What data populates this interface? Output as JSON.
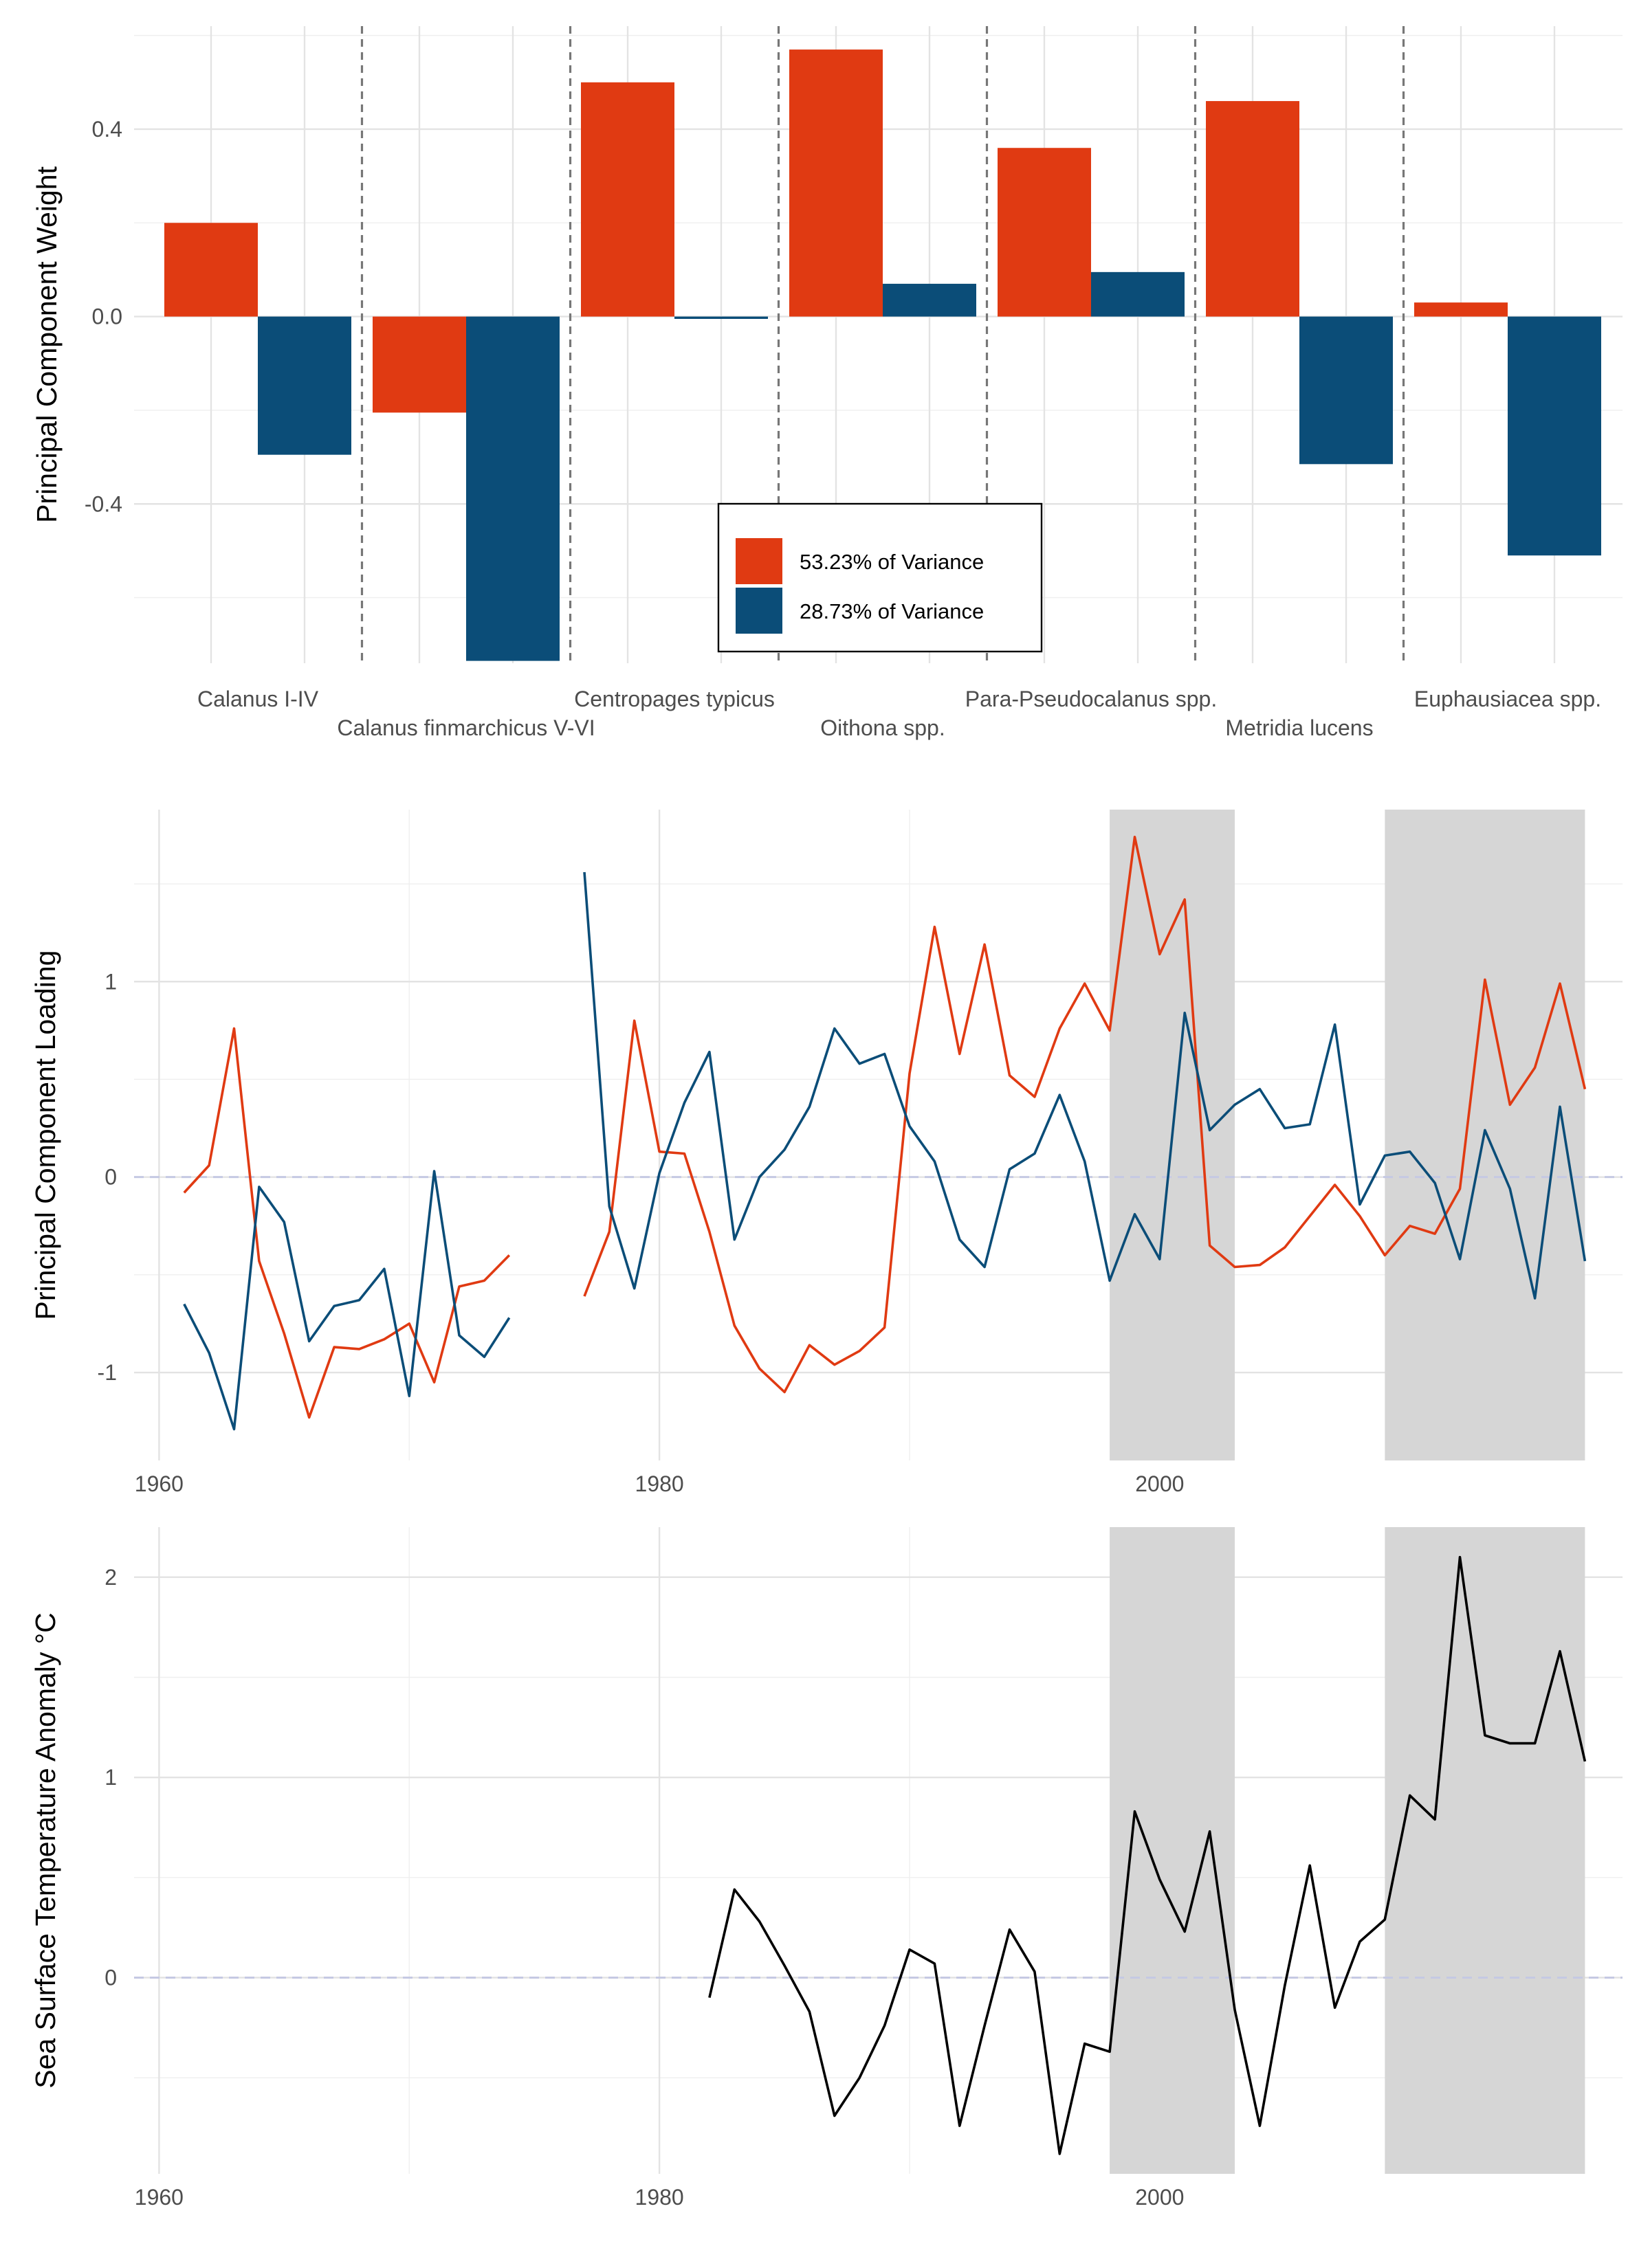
{
  "chart_data": [
    {
      "type": "bar",
      "ylabel": "Principal Component Weight",
      "ylim": [
        -0.74,
        0.62
      ],
      "yticks": [
        0.4,
        0.0,
        -0.4
      ],
      "ytick_labels": [
        "0.4",
        "0.0",
        "-0.4"
      ],
      "categories": [
        "Calanus I-IV",
        "Calanus finmarchicus V-VI",
        "Centropages typicus",
        "Oithona spp.",
        "Para-Pseudocalanus spp.",
        "Metridia lucens",
        "Euphausiacea spp."
      ],
      "series": [
        {
          "name": "53.23% of Variance",
          "color": "#E03A12",
          "values": [
            0.2,
            -0.205,
            0.5,
            0.57,
            0.36,
            0.46,
            0.03
          ]
        },
        {
          "name": "28.73% of Variance",
          "color": "#0B4D78",
          "values": [
            -0.295,
            -0.735,
            -0.005,
            0.07,
            0.095,
            -0.315,
            -0.51
          ]
        }
      ],
      "legend_position": "bottom-center",
      "category_separators": "dashed",
      "grid": true
    },
    {
      "type": "line",
      "ylabel": "Principal Component Loading",
      "xlim": [
        1959,
        2018.5
      ],
      "ylim": [
        -1.45,
        1.88
      ],
      "xticks": [
        1960,
        1980,
        2000
      ],
      "xtick_labels": [
        "1960",
        "1980",
        "2000"
      ],
      "yticks": [
        1,
        0,
        -1
      ],
      "ytick_labels": [
        "1",
        "0",
        "-1"
      ],
      "shaded_periods": [
        [
          1998,
          2003
        ],
        [
          2009,
          2017
        ]
      ],
      "zero_line": "dashed",
      "series": [
        {
          "color": "#E03A12",
          "segments": [
            {
              "x": [
                1961,
                1962,
                1963,
                1964,
                1965,
                1966,
                1967,
                1968,
                1969,
                1970,
                1971,
                1972,
                1973,
                1974
              ],
              "y": [
                -0.08,
                0.06,
                0.76,
                -0.43,
                -0.8,
                -1.23,
                -0.87,
                -0.88,
                -0.83,
                -0.75,
                -1.05,
                -0.56,
                -0.53,
                -0.4
              ]
            },
            {
              "x": [
                1977,
                1978,
                1979,
                1980,
                1981,
                1982,
                1983,
                1984,
                1985,
                1986,
                1987,
                1988,
                1989,
                1990,
                1991,
                1992,
                1993,
                1994,
                1995,
                1996,
                1997,
                1998,
                1999,
                2000,
                2001,
                2002,
                2003,
                2004,
                2005,
                2006,
                2007,
                2008,
                2009,
                2010,
                2011,
                2012,
                2013,
                2014,
                2015,
                2016,
                2017
              ],
              "y": [
                -0.61,
                -0.28,
                0.8,
                0.13,
                0.12,
                -0.28,
                -0.76,
                -0.98,
                -1.1,
                -0.86,
                -0.96,
                -0.89,
                -0.77,
                0.53,
                1.28,
                0.63,
                1.19,
                0.52,
                0.41,
                0.76,
                0.99,
                0.75,
                1.74,
                1.14,
                1.42,
                -0.35,
                -0.46,
                -0.45,
                -0.36,
                -0.2,
                -0.04,
                -0.2,
                -0.4,
                -0.25,
                -0.29,
                -0.06,
                1.01,
                0.37,
                0.56,
                0.99,
                0.45
              ]
            }
          ]
        },
        {
          "color": "#0B4D78",
          "segments": [
            {
              "x": [
                1961,
                1962,
                1963,
                1964,
                1965,
                1966,
                1967,
                1968,
                1969,
                1970,
                1971,
                1972,
                1973,
                1974
              ],
              "y": [
                -0.65,
                -0.9,
                -1.29,
                -0.05,
                -0.23,
                -0.84,
                -0.66,
                -0.63,
                -0.47,
                -1.12,
                0.03,
                -0.81,
                -0.92,
                -0.72
              ]
            },
            {
              "x": [
                1977,
                1978,
                1979,
                1980,
                1981,
                1982,
                1983,
                1984,
                1985,
                1986,
                1987,
                1988,
                1989,
                1990,
                1991,
                1992,
                1993,
                1994,
                1995,
                1996,
                1997,
                1998,
                1999,
                2000,
                2001,
                2002,
                2003,
                2004,
                2005,
                2006,
                2007,
                2008,
                2009,
                2010,
                2011,
                2012,
                2013,
                2014,
                2015,
                2016,
                2017
              ],
              "y": [
                1.56,
                -0.15,
                -0.57,
                0.02,
                0.38,
                0.64,
                -0.32,
                0.0,
                0.14,
                0.36,
                0.76,
                0.58,
                0.63,
                0.26,
                0.08,
                -0.32,
                -0.46,
                0.04,
                0.12,
                0.42,
                0.08,
                -0.53,
                -0.19,
                -0.42,
                0.84,
                0.24,
                0.37,
                0.45,
                0.25,
                0.27,
                0.78,
                -0.14,
                0.11,
                0.13,
                -0.03,
                -0.42,
                0.24,
                -0.06,
                -0.62,
                0.36,
                -0.43
              ]
            }
          ]
        }
      ],
      "grid": true
    },
    {
      "type": "line",
      "ylabel": "Sea Surface Temperature Anomaly °C",
      "xlim": [
        1959,
        2018.5
      ],
      "ylim": [
        -0.98,
        2.25
      ],
      "xticks": [
        1960,
        1980,
        2000
      ],
      "xtick_labels": [
        "1960",
        "1980",
        "2000"
      ],
      "yticks": [
        2,
        1,
        0
      ],
      "ytick_labels": [
        "2",
        "1",
        "0"
      ],
      "shaded_periods": [
        [
          1998,
          2003
        ],
        [
          2009,
          2017
        ]
      ],
      "zero_line": "dashed",
      "series": [
        {
          "color": "#000000",
          "segments": [
            {
              "x": [
                1982,
                1983,
                1984,
                1985,
                1986,
                1987,
                1988,
                1989,
                1990,
                1991,
                1992,
                1993,
                1994,
                1995,
                1996,
                1997,
                1998,
                1999,
                2000,
                2001,
                2002,
                2003,
                2004,
                2005,
                2006,
                2007,
                2008,
                2009,
                2010,
                2011,
                2012,
                2013,
                2014,
                2015,
                2016,
                2017
              ],
              "y": [
                -0.1,
                0.44,
                0.28,
                0.06,
                -0.17,
                -0.69,
                -0.5,
                -0.24,
                0.14,
                0.07,
                -0.74,
                -0.24,
                0.24,
                0.03,
                -0.88,
                -0.33,
                -0.37,
                0.83,
                0.49,
                0.23,
                0.73,
                -0.16,
                -0.74,
                -0.04,
                0.56,
                -0.15,
                0.18,
                0.29,
                0.91,
                0.79,
                2.1,
                1.21,
                1.17,
                1.17,
                1.63,
                1.08
              ]
            }
          ]
        }
      ],
      "grid": true
    }
  ]
}
